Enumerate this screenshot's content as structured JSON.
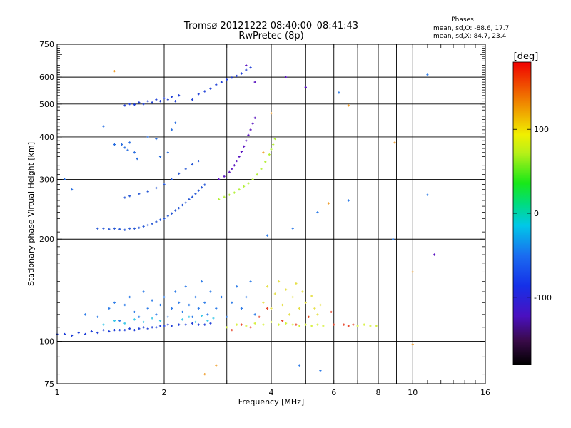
{
  "chart_data": {
    "type": "scatter",
    "title": "Tromsø 20121222 08:40:00–08:41:43",
    "subtitle": "RwPretec (8p)",
    "xlabel": "Frequency [MHz]",
    "ylabel": "Stationary phase Virtual Height [km]",
    "x_scale": "log",
    "y_scale": "log",
    "xlim": [
      1,
      16
    ],
    "ylim": [
      75,
      750
    ],
    "x_ticks": [
      1,
      2,
      4,
      6,
      8,
      10,
      16
    ],
    "y_ticks": [
      75,
      100,
      200,
      300,
      400,
      500,
      600,
      750
    ],
    "x_gridlines": [
      2,
      3,
      4,
      5,
      6,
      7,
      8,
      9,
      10
    ],
    "y_gridlines": [
      100,
      200,
      300,
      400,
      500,
      600
    ],
    "grid": true,
    "stats": {
      "heading": "Phases",
      "line_o": "mean, sd,O: -88.6, 17.7",
      "line_x": "mean, sd,X:  84.7, 23.4"
    },
    "colorbar": {
      "label": "[deg]",
      "range": [
        -180,
        180
      ],
      "ticks": [
        -100,
        0,
        100
      ],
      "tick_labels": [
        "-100",
        "0",
        "100"
      ]
    },
    "series": [
      {
        "color": "#1f3fd8",
        "points": [
          [
            1.0,
            105
          ],
          [
            1.05,
            105
          ],
          [
            1.1,
            104
          ],
          [
            1.15,
            106
          ],
          [
            1.2,
            105
          ],
          [
            1.25,
            107
          ],
          [
            1.3,
            106
          ],
          [
            1.35,
            108
          ],
          [
            1.4,
            107
          ],
          [
            1.45,
            108
          ],
          [
            1.5,
            108
          ],
          [
            1.55,
            108
          ],
          [
            1.6,
            109
          ],
          [
            1.65,
            108
          ],
          [
            1.7,
            109
          ],
          [
            1.75,
            110
          ],
          [
            1.8,
            109
          ],
          [
            1.85,
            110
          ],
          [
            1.9,
            110
          ],
          [
            1.95,
            111
          ],
          [
            2.0,
            111
          ],
          [
            2.05,
            112
          ],
          [
            2.1,
            111
          ],
          [
            2.2,
            112
          ],
          [
            2.3,
            112
          ],
          [
            2.4,
            113
          ],
          [
            2.5,
            112
          ],
          [
            2.6,
            112
          ],
          [
            2.7,
            113
          ]
        ]
      },
      {
        "color": "#2a5ad6",
        "points": [
          [
            1.3,
            215
          ],
          [
            1.35,
            215
          ],
          [
            1.4,
            214
          ],
          [
            1.45,
            215
          ],
          [
            1.5,
            214
          ],
          [
            1.55,
            213
          ],
          [
            1.6,
            215
          ],
          [
            1.65,
            215
          ],
          [
            1.7,
            216
          ],
          [
            1.75,
            218
          ],
          [
            1.8,
            220
          ],
          [
            1.85,
            222
          ],
          [
            1.9,
            225
          ],
          [
            1.95,
            228
          ],
          [
            2.0,
            230
          ],
          [
            2.05,
            234
          ],
          [
            2.1,
            238
          ],
          [
            2.15,
            243
          ],
          [
            2.2,
            247
          ],
          [
            2.25,
            252
          ],
          [
            2.3,
            256
          ],
          [
            2.35,
            262
          ],
          [
            2.4,
            266
          ],
          [
            2.45,
            272
          ],
          [
            2.5,
            278
          ],
          [
            2.55,
            284
          ],
          [
            2.6,
            289
          ]
        ]
      },
      {
        "color": "#2a5ad6",
        "points": [
          [
            1.55,
            265
          ],
          [
            1.6,
            268
          ],
          [
            1.7,
            272
          ],
          [
            1.8,
            276
          ],
          [
            1.9,
            283
          ],
          [
            2.0,
            290
          ],
          [
            2.1,
            300
          ],
          [
            2.2,
            312
          ],
          [
            2.3,
            322
          ],
          [
            2.4,
            332
          ],
          [
            2.5,
            340
          ]
        ]
      },
      {
        "color": "#5a14c0",
        "points": [
          [
            2.85,
            300
          ],
          [
            2.95,
            306
          ],
          [
            3.05,
            315
          ],
          [
            3.1,
            322
          ],
          [
            3.15,
            330
          ],
          [
            3.2,
            340
          ],
          [
            3.25,
            350
          ],
          [
            3.3,
            362
          ],
          [
            3.35,
            375
          ],
          [
            3.4,
            390
          ],
          [
            3.45,
            405
          ],
          [
            3.5,
            420
          ],
          [
            3.55,
            438
          ],
          [
            3.6,
            455
          ]
        ]
      },
      {
        "color": "#b5f03a",
        "points": [
          [
            2.85,
            262
          ],
          [
            2.95,
            266
          ],
          [
            3.05,
            270
          ],
          [
            3.15,
            274
          ],
          [
            3.25,
            280
          ],
          [
            3.35,
            286
          ],
          [
            3.45,
            292
          ],
          [
            3.55,
            300
          ],
          [
            3.65,
            310
          ],
          [
            3.75,
            322
          ],
          [
            3.85,
            338
          ],
          [
            3.95,
            355
          ],
          [
            4.0,
            368
          ],
          [
            4.05,
            380
          ],
          [
            4.1,
            395
          ]
        ]
      },
      {
        "color": "#1f3fd8",
        "points": [
          [
            1.55,
            495
          ],
          [
            1.6,
            500
          ],
          [
            1.65,
            498
          ],
          [
            1.7,
            505
          ],
          [
            1.75,
            500
          ],
          [
            1.8,
            510
          ],
          [
            1.85,
            505
          ],
          [
            1.9,
            515
          ],
          [
            1.95,
            510
          ],
          [
            2.0,
            520
          ],
          [
            2.05,
            515
          ],
          [
            2.1,
            525
          ],
          [
            2.15,
            510
          ],
          [
            2.2,
            530
          ],
          [
            2.4,
            515
          ],
          [
            2.5,
            535
          ],
          [
            2.6,
            545
          ],
          [
            2.7,
            555
          ],
          [
            2.8,
            570
          ],
          [
            2.9,
            580
          ],
          [
            3.0,
            590
          ],
          [
            3.1,
            598
          ],
          [
            3.2,
            605
          ],
          [
            3.3,
            615
          ],
          [
            3.4,
            630
          ],
          [
            3.5,
            640
          ]
        ]
      },
      {
        "color": "#2a6fe0",
        "points": [
          [
            1.1,
            280
          ],
          [
            1.05,
            300
          ],
          [
            1.52,
            380
          ],
          [
            1.55,
            372
          ],
          [
            1.58,
            366
          ],
          [
            1.6,
            385
          ],
          [
            1.45,
            380
          ],
          [
            1.65,
            360
          ],
          [
            1.35,
            430
          ],
          [
            1.68,
            345
          ],
          [
            1.95,
            350
          ],
          [
            2.05,
            360
          ],
          [
            1.8,
            400
          ],
          [
            2.1,
            420
          ],
          [
            2.15,
            440
          ],
          [
            1.9,
            395
          ]
        ]
      },
      {
        "color": "#2f7de8",
        "points": [
          [
            1.2,
            120
          ],
          [
            1.3,
            118
          ],
          [
            1.4,
            125
          ],
          [
            1.45,
            130
          ],
          [
            1.5,
            115
          ],
          [
            1.55,
            128
          ],
          [
            1.6,
            135
          ],
          [
            1.65,
            122
          ],
          [
            1.7,
            118
          ],
          [
            1.75,
            140
          ],
          [
            1.8,
            125
          ],
          [
            1.85,
            132
          ],
          [
            1.9,
            120
          ],
          [
            1.95,
            128
          ],
          [
            2.0,
            135
          ],
          [
            2.05,
            118
          ],
          [
            2.1,
            125
          ],
          [
            2.15,
            140
          ],
          [
            2.2,
            130
          ],
          [
            2.25,
            122
          ],
          [
            2.3,
            145
          ],
          [
            2.35,
            128
          ],
          [
            2.4,
            118
          ],
          [
            2.45,
            135
          ],
          [
            2.5,
            125
          ],
          [
            2.55,
            150
          ],
          [
            2.6,
            130
          ],
          [
            2.65,
            120
          ],
          [
            2.7,
            140
          ],
          [
            2.8,
            125
          ],
          [
            2.9,
            135
          ],
          [
            3.0,
            118
          ],
          [
            3.1,
            130
          ],
          [
            3.2,
            145
          ],
          [
            3.3,
            125
          ],
          [
            3.4,
            135
          ],
          [
            3.5,
            150
          ],
          [
            3.6,
            120
          ]
        ]
      },
      {
        "color": "#3cc8e8",
        "points": [
          [
            1.35,
            112
          ],
          [
            1.45,
            115
          ],
          [
            1.55,
            113
          ],
          [
            1.65,
            116
          ],
          [
            1.75,
            114
          ],
          [
            1.85,
            117
          ],
          [
            1.95,
            115
          ],
          [
            2.25,
            116
          ],
          [
            2.35,
            118
          ],
          [
            2.45,
            114
          ],
          [
            2.55,
            119
          ],
          [
            2.65,
            115
          ],
          [
            2.75,
            117
          ]
        ]
      },
      {
        "color": "#d6f03a",
        "points": [
          [
            3.0,
            110
          ],
          [
            3.2,
            112
          ],
          [
            3.4,
            111
          ],
          [
            3.6,
            113
          ],
          [
            3.8,
            112
          ],
          [
            4.0,
            114
          ],
          [
            4.2,
            112
          ],
          [
            4.4,
            113
          ],
          [
            4.6,
            112
          ],
          [
            4.8,
            111
          ],
          [
            5.0,
            112
          ],
          [
            5.2,
            111
          ],
          [
            5.4,
            112
          ],
          [
            5.6,
            111
          ],
          [
            7.0,
            111
          ],
          [
            7.3,
            112
          ],
          [
            7.6,
            111
          ],
          [
            7.9,
            111
          ]
        ]
      },
      {
        "color": "#e6e04a",
        "points": [
          [
            3.8,
            130
          ],
          [
            3.9,
            145
          ],
          [
            4.0,
            125
          ],
          [
            4.1,
            138
          ],
          [
            4.2,
            150
          ],
          [
            4.3,
            128
          ],
          [
            4.4,
            142
          ],
          [
            4.5,
            120
          ],
          [
            4.6,
            135
          ],
          [
            4.7,
            148
          ],
          [
            4.8,
            125
          ],
          [
            4.9,
            140
          ],
          [
            5.0,
            130
          ],
          [
            5.1,
            118
          ],
          [
            5.2,
            136
          ],
          [
            5.3,
            125
          ],
          [
            5.4,
            120
          ],
          [
            5.5,
            128
          ]
        ]
      },
      {
        "color": "#e84a30",
        "points": [
          [
            3.1,
            108
          ],
          [
            3.3,
            112
          ],
          [
            3.5,
            110
          ],
          [
            3.7,
            118
          ],
          [
            3.9,
            125
          ],
          [
            4.3,
            115
          ],
          [
            4.7,
            112
          ],
          [
            5.1,
            118
          ],
          [
            6.0,
            112
          ],
          [
            6.4,
            112
          ],
          [
            6.6,
            111
          ],
          [
            6.8,
            112
          ],
          [
            5.9,
            122
          ]
        ]
      },
      {
        "color": "#2f7de8",
        "points": [
          [
            4.6,
            215
          ],
          [
            5.4,
            240
          ],
          [
            6.2,
            540
          ],
          [
            6.6,
            260
          ],
          [
            3.9,
            205
          ],
          [
            8.8,
            200
          ],
          [
            11.0,
            610
          ],
          [
            11.0,
            270
          ],
          [
            4.8,
            85
          ],
          [
            5.5,
            82
          ]
        ]
      },
      {
        "color": "#f0a030",
        "points": [
          [
            1.45,
            625
          ],
          [
            3.8,
            360
          ],
          [
            4.0,
            470
          ],
          [
            5.8,
            255
          ],
          [
            6.6,
            495
          ],
          [
            8.9,
            385
          ],
          [
            10.0,
            160
          ],
          [
            10.0,
            98
          ],
          [
            2.6,
            80
          ],
          [
            2.8,
            85
          ]
        ]
      },
      {
        "color": "#5a14c0",
        "points": [
          [
            11.5,
            180
          ],
          [
            5.0,
            560
          ],
          [
            4.4,
            600
          ],
          [
            3.6,
            580
          ],
          [
            3.4,
            650
          ]
        ]
      }
    ]
  }
}
